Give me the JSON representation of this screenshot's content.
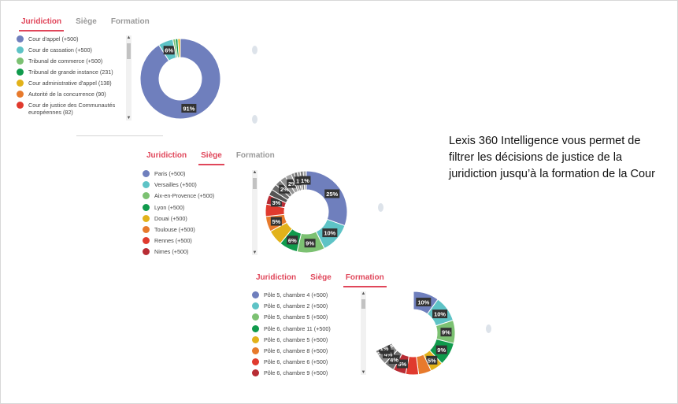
{
  "caption": "Lexis 360 Intelligence vous permet de filtrer les décisions de justice de la juridiction jusqu’à la formation de la Cour",
  "colors": {
    "accent": "#e0465a",
    "inactive_tab": "#9a9a9a"
  },
  "panels": [
    {
      "tabs": [
        {
          "label": "Juridiction",
          "active": true,
          "color": "red"
        },
        {
          "label": "Siège",
          "active": false,
          "color": "gray"
        },
        {
          "label": "Formation",
          "active": false,
          "color": "gray"
        }
      ],
      "items": [
        {
          "label": "Cour d'appel (+500)",
          "color": "#6f7fbd"
        },
        {
          "label": "Cour de cassation (+500)",
          "color": "#5ec3c6"
        },
        {
          "label": "Tribunal de commerce (+500)",
          "color": "#7cc172"
        },
        {
          "label": "Tribunal de grande instance (231)",
          "color": "#109a4c"
        },
        {
          "label": "Cour administrative d'appel (138)",
          "color": "#e2b21a"
        },
        {
          "label": "Autorité de la concurrence (90)",
          "color": "#e77a2c"
        },
        {
          "label": "Cour de justice des Communautés européennes (82)",
          "color": "#e03a2e"
        }
      ],
      "chart_data": {
        "type": "pie",
        "slices": [
          {
            "value": 91,
            "label": "91%",
            "color": "#6f7fbd"
          },
          {
            "value": 6,
            "label": "6%",
            "color": "#5ec3c6"
          },
          {
            "value": 1,
            "label": "",
            "color": "#7cc172"
          },
          {
            "value": 1,
            "label": "",
            "color": "#109a4c"
          },
          {
            "value": 1,
            "label": "",
            "color": "#e2b21a"
          }
        ]
      }
    },
    {
      "tabs": [
        {
          "label": "Juridiction",
          "active": false,
          "color": "red"
        },
        {
          "label": "Siège",
          "active": true,
          "color": "red"
        },
        {
          "label": "Formation",
          "active": false,
          "color": "gray"
        }
      ],
      "items": [
        {
          "label": "Paris (+500)",
          "color": "#6f7fbd"
        },
        {
          "label": "Versailles (+500)",
          "color": "#5ec3c6"
        },
        {
          "label": "Aix-en-Provence (+500)",
          "color": "#7cc172"
        },
        {
          "label": "Lyon (+500)",
          "color": "#109a4c"
        },
        {
          "label": "Douai (+500)",
          "color": "#e2b21a"
        },
        {
          "label": "Toulouse (+500)",
          "color": "#e77a2c"
        },
        {
          "label": "Rennes (+500)",
          "color": "#e03a2e"
        },
        {
          "label": "Nimes (+500)",
          "color": "#b82c34"
        }
      ],
      "chart_data": {
        "type": "pie",
        "slices": [
          {
            "value": 25,
            "label": "25%",
            "color": "#6f7fbd"
          },
          {
            "value": 10,
            "label": "10%",
            "color": "#5ec3c6"
          },
          {
            "value": 9,
            "label": "9%",
            "color": "#7cc172"
          },
          {
            "value": 6,
            "label": "6%",
            "color": "#109a4c"
          },
          {
            "value": 5,
            "label": "",
            "color": "#e2b21a"
          },
          {
            "value": 5,
            "label": "5%",
            "color": "#e77a2c"
          },
          {
            "value": 4,
            "label": "",
            "color": "#e03a2e"
          },
          {
            "value": 3,
            "label": "3%",
            "color": "#b82c34"
          },
          {
            "value": 2,
            "label": "",
            "color": "#555555"
          },
          {
            "value": 2,
            "label": "",
            "color": "#6a6a6a"
          },
          {
            "value": 2,
            "label": "2%",
            "color": "#7d7d7d"
          },
          {
            "value": 2,
            "label": "",
            "color": "#919191"
          },
          {
            "value": 2,
            "label": "2%",
            "color": "#a5a5a5"
          },
          {
            "value": 1,
            "label": "",
            "color": "#8a8a8a"
          },
          {
            "value": 1,
            "label": "",
            "color": "#6e6e6e"
          },
          {
            "value": 1,
            "label": "1%",
            "color": "#9c9c9c"
          },
          {
            "value": 1,
            "label": "",
            "color": "#7a7a7a"
          },
          {
            "value": 1,
            "label": "1%",
            "color": "#a8a8a8"
          }
        ]
      }
    },
    {
      "tabs": [
        {
          "label": "Juridiction",
          "active": false,
          "color": "red"
        },
        {
          "label": "Siège",
          "active": false,
          "color": "red"
        },
        {
          "label": "Formation",
          "active": true,
          "color": "red"
        }
      ],
      "items": [
        {
          "label": "Pôle 5, chambre 4 (+500)",
          "color": "#6f7fbd"
        },
        {
          "label": "Pôle 6, chambre 2 (+500)",
          "color": "#5ec3c6"
        },
        {
          "label": "Pôle 5, chambre 5 (+500)",
          "color": "#7cc172"
        },
        {
          "label": "Pôle 6, chambre 11 (+500)",
          "color": "#109a4c"
        },
        {
          "label": "Pôle 6, chambre 5 (+500)",
          "color": "#e2b21a"
        },
        {
          "label": "Pôle 6, chambre 8 (+500)",
          "color": "#e77a2c"
        },
        {
          "label": "Pôle 6, chambre 6 (+500)",
          "color": "#e03a2e"
        },
        {
          "label": "Pôle 6, chambre 9 (+500)",
          "color": "#b82c34"
        }
      ],
      "chart_data": {
        "type": "pie",
        "slices": [
          {
            "value": 10,
            "label": "10%",
            "color": "#6f7fbd"
          },
          {
            "value": 10,
            "label": "10%",
            "color": "#5ec3c6"
          },
          {
            "value": 9,
            "label": "9%",
            "color": "#7cc172"
          },
          {
            "value": 9,
            "label": "9%",
            "color": "#109a4c"
          },
          {
            "value": 5,
            "label": "5%",
            "color": "#e2b21a"
          },
          {
            "value": 5,
            "label": "",
            "color": "#e77a2c"
          },
          {
            "value": 5,
            "label": "",
            "color": "#e03a2e"
          },
          {
            "value": 5,
            "label": "5%",
            "color": "#b82c34"
          },
          {
            "value": 4,
            "label": "4%",
            "color": "#6e6e6e"
          },
          {
            "value": 4,
            "label": "4%",
            "color": "#8a8a8a"
          },
          {
            "value": 1,
            "label": "1%",
            "color": "#a0a0a0"
          },
          {
            "value": 1,
            "label": "1%",
            "color": "#7d7d7d"
          },
          {
            "value": 32,
            "label": "",
            "color": "#ffffff"
          }
        ]
      }
    }
  ]
}
